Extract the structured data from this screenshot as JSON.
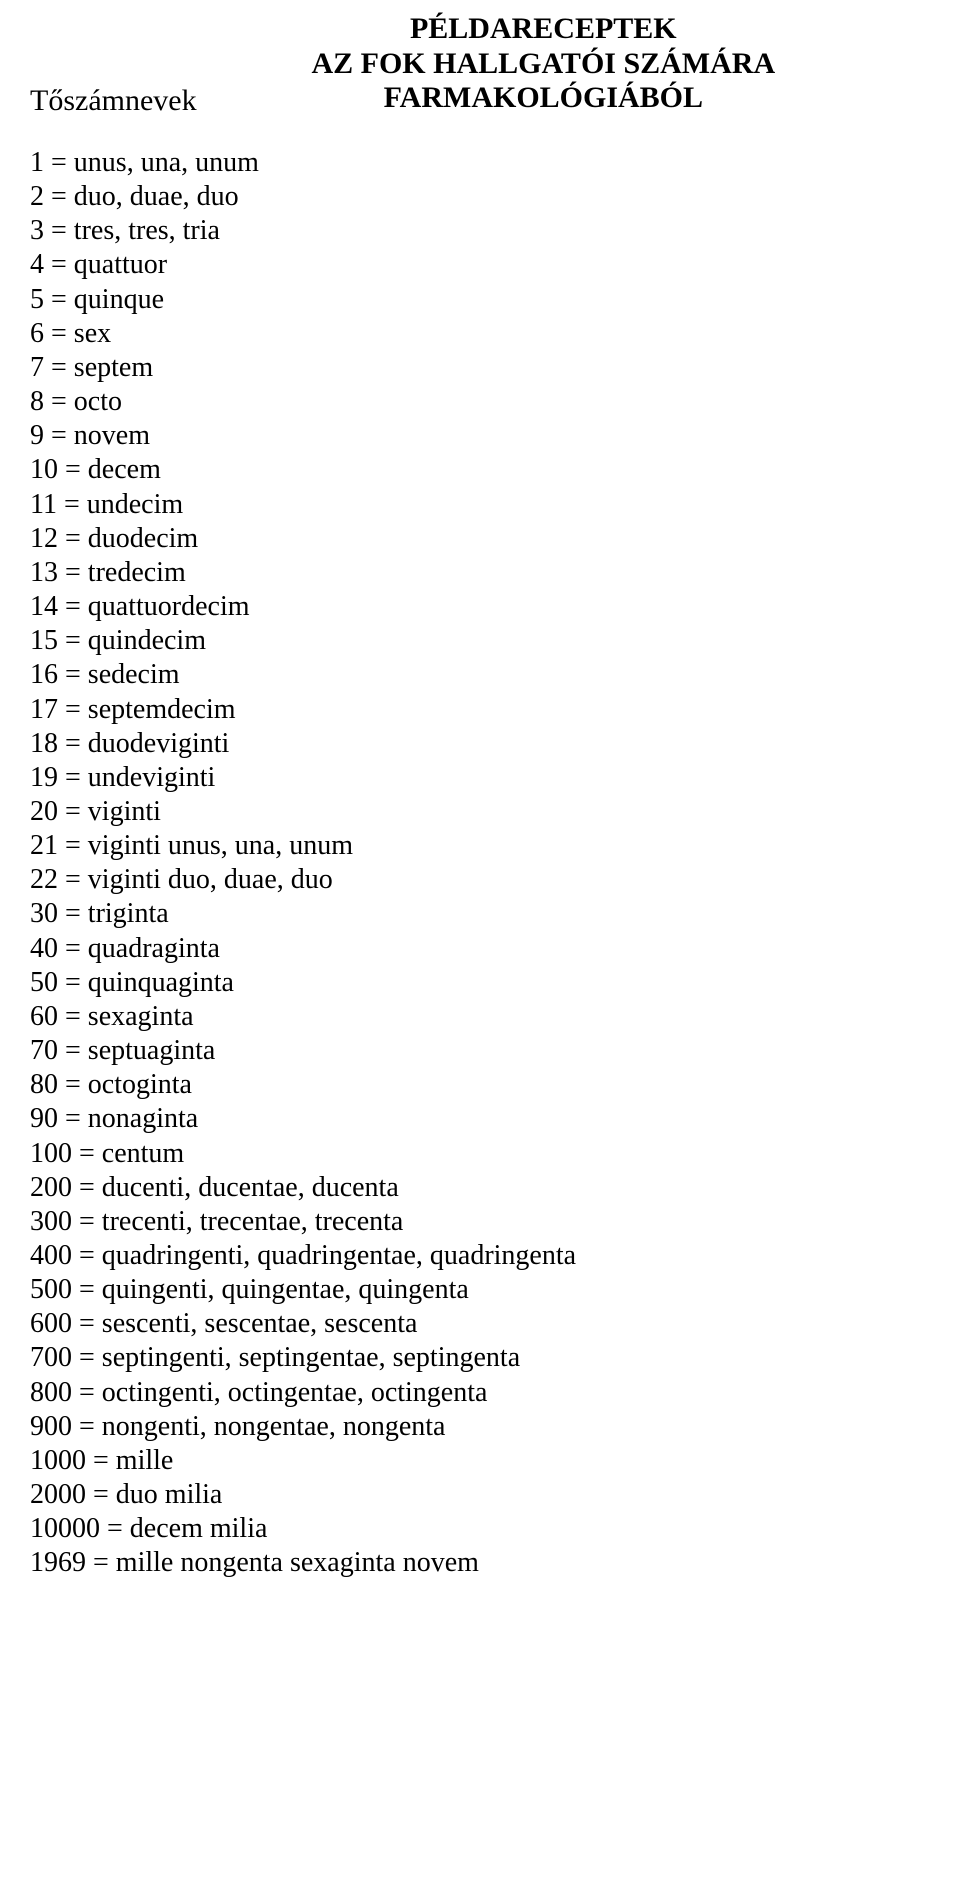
{
  "title": {
    "line1": "PÉLDARECEPTEK",
    "line2": "AZ FOK HALLGATÓI SZÁMÁRA",
    "line3": "FARMAKOLÓGIÁBÓL"
  },
  "section_heading": "Tőszámnevek",
  "numerals": [
    "1 = unus, una, unum",
    "2 = duo, duae, duo",
    "3 = tres, tres, tria",
    "4 = quattuor",
    "5 = quinque",
    "6 = sex",
    "7 = septem",
    "8 = octo",
    "9 = novem",
    "10 = decem",
    "11 = undecim",
    "12 = duodecim",
    "13 = tredecim",
    "14 = quattuordecim",
    "15 = quindecim",
    "16 = sedecim",
    "17 = septemdecim",
    "18 = duodeviginti",
    "19 = undeviginti",
    "20 = viginti",
    "21 = viginti unus, una, unum",
    "22 = viginti duo, duae, duo",
    "30 = triginta",
    "40 = quadraginta",
    "50 = quinquaginta",
    "60 = sexaginta",
    "70 = septuaginta",
    "80 = octoginta",
    "90 = nonaginta",
    "100 = centum",
    "200 = ducenti, ducentae, ducenta",
    "300 = trecenti, trecentae, trecenta",
    "400 = quadringenti, quadringentae, quadringenta",
    "500 = quingenti, quingentae, quingenta",
    "600 = sescenti, sescentae, sescenta",
    "700 = septingenti, septingentae, septingenta",
    "800 = octingenti, octingentae, octingenta",
    "900 = nongenti, nongentae, nongenta",
    "1000 = mille",
    "2000 = duo milia",
    "10000 = decem milia",
    "1969 = mille nongenta sexaginta novem"
  ],
  "style": {
    "background_color": "#ffffff",
    "text_color": "#000000",
    "title_fontsize_pt": 22,
    "body_fontsize_pt": 21,
    "font_family": "Times New Roman"
  }
}
